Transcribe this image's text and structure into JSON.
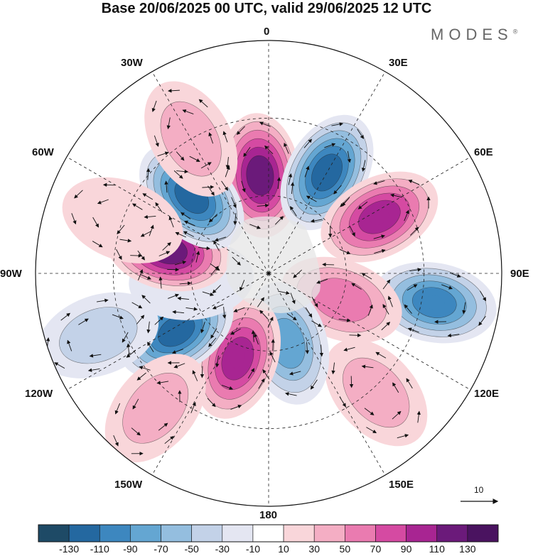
{
  "title": "Base 20/06/2025 00 UTC, valid 29/06/2025 12 UTC",
  "logo": {
    "text": "MODES",
    "mark": "®"
  },
  "longitude_labels": [
    "0",
    "30E",
    "60E",
    "90E",
    "120E",
    "150E",
    "180",
    "150W",
    "120W",
    "90W",
    "60W",
    "30W"
  ],
  "reference_vector": {
    "label": "10"
  },
  "colorbar": {
    "tick_labels": [
      "-130",
      "-110",
      "-90",
      "-70",
      "-50",
      "-30",
      "-10",
      "10",
      "30",
      "50",
      "70",
      "90",
      "110",
      "130"
    ],
    "colors": [
      "#1e4a66",
      "#2468a0",
      "#3d87bf",
      "#64a6d2",
      "#94bedf",
      "#c3d2e8",
      "#e4e6f2",
      "#ffffff",
      "#f9d6da",
      "#f4aec4",
      "#ea7bb0",
      "#d54aa2",
      "#a82592",
      "#6b1a7a",
      "#4a1360"
    ]
  },
  "anomaly_cells": [
    {
      "lon": 355,
      "lat": 52,
      "value": 115
    },
    {
      "lon": 30,
      "lat": 45,
      "value": -125
    },
    {
      "lon": 63,
      "lat": 42,
      "value": 90
    },
    {
      "lon": 100,
      "lat": 25,
      "value": -95
    },
    {
      "lon": 110,
      "lat": 60,
      "value": 55
    },
    {
      "lon": 138,
      "lat": 28,
      "value": 35
    },
    {
      "lon": 165,
      "lat": 62,
      "value": -85
    },
    {
      "lon": 200,
      "lat": 55,
      "value": 100
    },
    {
      "lon": 238,
      "lat": 48,
      "value": -120
    },
    {
      "lon": 250,
      "lat": 20,
      "value": -40
    },
    {
      "lon": 220,
      "lat": 22,
      "value": 30
    },
    {
      "lon": 265,
      "lat": 60,
      "value": -20
    },
    {
      "lon": 283,
      "lat": 50,
      "value": 125
    },
    {
      "lon": 315,
      "lat": 48,
      "value": -125
    },
    {
      "lon": 290,
      "lat": 30,
      "value": 20
    },
    {
      "lon": 330,
      "lat": 30,
      "value": 30
    }
  ]
}
